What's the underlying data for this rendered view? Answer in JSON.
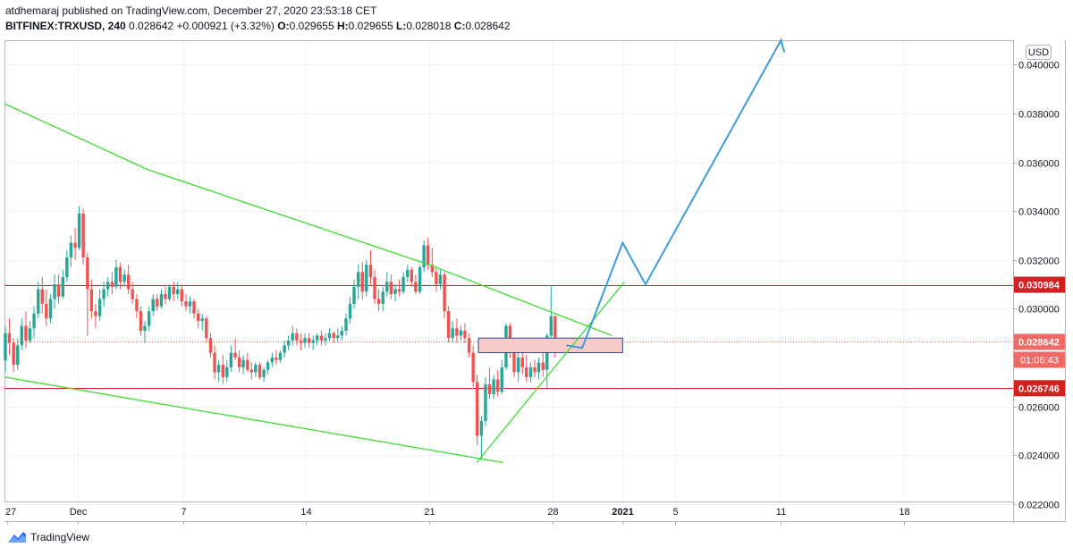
{
  "header": {
    "publisher": "atdhemaraj published on TradingView.com, December 27, 2020 23:53:18 CET",
    "symbol": "BITFINEX:TRXUSD, 240",
    "last": "0.028642",
    "change": "+0.000921 (+3.32%)",
    "o_label": "O:",
    "o_value": "0.029655",
    "h_label": "H:",
    "h_value": "0.029655",
    "l_label": "L:",
    "l_value": "0.028018",
    "c_label": "C:",
    "c_value": "0.028642"
  },
  "footer": {
    "brand": "TradingView"
  },
  "colors": {
    "up": "#26a69a",
    "down": "#ef5350",
    "trend": "#3bdc2c",
    "projection": "#3c9be0",
    "level": "#d32020",
    "zone_fill": "#f6c9cb",
    "zone_stroke": "#2a4a8c"
  },
  "chart_data": {
    "type": "candlestick",
    "currency_button": "USD",
    "ylim": [
      0.0213,
      0.041
    ],
    "y_ticks": [
      {
        "value": 0.04,
        "label": "0.040000"
      },
      {
        "value": 0.038,
        "label": "0.038000"
      },
      {
        "value": 0.036,
        "label": "0.036000"
      },
      {
        "value": 0.034,
        "label": "0.034000"
      },
      {
        "value": 0.032,
        "label": "0.032000"
      },
      {
        "value": 0.03,
        "label": "0.030000"
      },
      {
        "value": 0.026,
        "label": "0.026000"
      },
      {
        "value": 0.024,
        "label": "0.024000"
      },
      {
        "value": 0.022,
        "label": "0.022000"
      }
    ],
    "x_ticks": [
      {
        "day": 27,
        "label": "27"
      },
      {
        "day": 31,
        "label": "Dec"
      },
      {
        "day": 37,
        "label": "7"
      },
      {
        "day": 44,
        "label": "14"
      },
      {
        "day": 51,
        "label": "21"
      },
      {
        "day": 58,
        "label": "28"
      },
      {
        "day": 62,
        "label": "2021"
      },
      {
        "day": 65,
        "label": "5"
      },
      {
        "day": 71,
        "label": "11"
      },
      {
        "day": 78,
        "label": "18"
      }
    ],
    "xlim": [
      26.85,
      84.2
    ],
    "price_labels": [
      {
        "value": 0.030984,
        "label": "0.030984",
        "style": "level"
      },
      {
        "value": 0.028642,
        "label": "0.028642",
        "style": "current"
      },
      {
        "value": 0.026746,
        "label": "0.026746",
        "style": "level"
      }
    ],
    "countdown": "01:06:43",
    "horizontal_levels": [
      0.030984,
      0.026746
    ],
    "current_price": 0.028642,
    "trendlines": [
      {
        "name": "upper-channel",
        "points": [
          [
            26.85,
            0.0384
          ],
          [
            35.0,
            0.0357
          ],
          [
            51.0,
            0.0318
          ],
          [
            61.4,
            0.0289
          ]
        ]
      },
      {
        "name": "lower-channel",
        "points": [
          [
            26.85,
            0.0272
          ],
          [
            55.2,
            0.0237
          ]
        ]
      },
      {
        "name": "rising-support",
        "points": [
          [
            53.7,
            0.0237
          ],
          [
            62.1,
            0.0311
          ]
        ]
      }
    ],
    "projection": [
      [
        58.8,
        0.0285
      ],
      [
        59.7,
        0.0284
      ],
      [
        62.0,
        0.0327
      ],
      [
        63.3,
        0.031
      ],
      [
        71.0,
        0.041
      ],
      [
        71.2,
        0.0405
      ]
    ],
    "zone": {
      "x1": 53.8,
      "x2": 62.0,
      "y_top": 0.0288,
      "y_bottom": 0.0282
    },
    "candles": [
      {
        "t": 26.9,
        "o": 0.02788,
        "h": 0.0293,
        "l": 0.0274,
        "c": 0.029
      },
      {
        "t": 27.13,
        "o": 0.029,
        "h": 0.0296,
        "l": 0.0281,
        "c": 0.0286
      },
      {
        "t": 27.37,
        "o": 0.0286,
        "h": 0.0288,
        "l": 0.0274,
        "c": 0.0277
      },
      {
        "t": 27.6,
        "o": 0.0277,
        "h": 0.0288,
        "l": 0.0275,
        "c": 0.0285
      },
      {
        "t": 27.83,
        "o": 0.0285,
        "h": 0.0296,
        "l": 0.0283,
        "c": 0.0293
      },
      {
        "t": 28.07,
        "o": 0.0293,
        "h": 0.0299,
        "l": 0.0284,
        "c": 0.0287
      },
      {
        "t": 28.3,
        "o": 0.0287,
        "h": 0.0295,
        "l": 0.0286,
        "c": 0.0292
      },
      {
        "t": 28.53,
        "o": 0.0292,
        "h": 0.0301,
        "l": 0.0288,
        "c": 0.0298
      },
      {
        "t": 28.77,
        "o": 0.0298,
        "h": 0.0311,
        "l": 0.0296,
        "c": 0.0308
      },
      {
        "t": 29.0,
        "o": 0.0308,
        "h": 0.0313,
        "l": 0.0298,
        "c": 0.0302
      },
      {
        "t": 29.23,
        "o": 0.0302,
        "h": 0.0308,
        "l": 0.0293,
        "c": 0.0296
      },
      {
        "t": 29.47,
        "o": 0.0296,
        "h": 0.0306,
        "l": 0.0294,
        "c": 0.0304
      },
      {
        "t": 29.7,
        "o": 0.0304,
        "h": 0.0314,
        "l": 0.03,
        "c": 0.031
      },
      {
        "t": 29.93,
        "o": 0.031,
        "h": 0.0314,
        "l": 0.0302,
        "c": 0.0305
      },
      {
        "t": 30.17,
        "o": 0.0305,
        "h": 0.0316,
        "l": 0.0304,
        "c": 0.0313
      },
      {
        "t": 30.4,
        "o": 0.0313,
        "h": 0.0324,
        "l": 0.0311,
        "c": 0.0321
      },
      {
        "t": 30.63,
        "o": 0.0321,
        "h": 0.033,
        "l": 0.0317,
        "c": 0.0327
      },
      {
        "t": 30.87,
        "o": 0.0327,
        "h": 0.0333,
        "l": 0.032,
        "c": 0.0325
      },
      {
        "t": 31.1,
        "o": 0.0325,
        "h": 0.0342,
        "l": 0.0324,
        "c": 0.0339
      },
      {
        "t": 31.33,
        "o": 0.0339,
        "h": 0.0341,
        "l": 0.0318,
        "c": 0.0321
      },
      {
        "t": 31.57,
        "o": 0.0321,
        "h": 0.0323,
        "l": 0.0289,
        "c": 0.0308
      },
      {
        "t": 31.8,
        "o": 0.0308,
        "h": 0.0312,
        "l": 0.0296,
        "c": 0.0299
      },
      {
        "t": 32.03,
        "o": 0.0299,
        "h": 0.0302,
        "l": 0.0292,
        "c": 0.0297
      },
      {
        "t": 32.27,
        "o": 0.0297,
        "h": 0.0308,
        "l": 0.0295,
        "c": 0.0304
      },
      {
        "t": 32.5,
        "o": 0.0304,
        "h": 0.0311,
        "l": 0.0301,
        "c": 0.0308
      },
      {
        "t": 32.73,
        "o": 0.0308,
        "h": 0.0313,
        "l": 0.0305,
        "c": 0.0311
      },
      {
        "t": 32.97,
        "o": 0.0311,
        "h": 0.0315,
        "l": 0.0306,
        "c": 0.0309
      },
      {
        "t": 33.2,
        "o": 0.0309,
        "h": 0.032,
        "l": 0.0308,
        "c": 0.0317
      },
      {
        "t": 33.43,
        "o": 0.0317,
        "h": 0.0319,
        "l": 0.0308,
        "c": 0.0311
      },
      {
        "t": 33.67,
        "o": 0.0311,
        "h": 0.0316,
        "l": 0.0309,
        "c": 0.0314
      },
      {
        "t": 33.9,
        "o": 0.0314,
        "h": 0.0318,
        "l": 0.0306,
        "c": 0.0308
      },
      {
        "t": 34.13,
        "o": 0.0308,
        "h": 0.0311,
        "l": 0.0302,
        "c": 0.0304
      },
      {
        "t": 34.37,
        "o": 0.0304,
        "h": 0.0306,
        "l": 0.0296,
        "c": 0.0299
      },
      {
        "t": 34.6,
        "o": 0.0299,
        "h": 0.0301,
        "l": 0.0289,
        "c": 0.0291
      },
      {
        "t": 34.83,
        "o": 0.0291,
        "h": 0.0295,
        "l": 0.0286,
        "c": 0.0293
      },
      {
        "t": 35.07,
        "o": 0.0293,
        "h": 0.0301,
        "l": 0.0291,
        "c": 0.0299
      },
      {
        "t": 35.3,
        "o": 0.0299,
        "h": 0.0306,
        "l": 0.0297,
        "c": 0.0304
      },
      {
        "t": 35.53,
        "o": 0.0304,
        "h": 0.0306,
        "l": 0.0299,
        "c": 0.0301
      },
      {
        "t": 35.77,
        "o": 0.0301,
        "h": 0.0308,
        "l": 0.03,
        "c": 0.0306
      },
      {
        "t": 36.0,
        "o": 0.0306,
        "h": 0.0309,
        "l": 0.0302,
        "c": 0.0304
      },
      {
        "t": 36.23,
        "o": 0.0304,
        "h": 0.031,
        "l": 0.0303,
        "c": 0.0309
      },
      {
        "t": 36.47,
        "o": 0.0309,
        "h": 0.0311,
        "l": 0.0303,
        "c": 0.0306
      },
      {
        "t": 36.7,
        "o": 0.0306,
        "h": 0.0311,
        "l": 0.0304,
        "c": 0.0308
      },
      {
        "t": 36.93,
        "o": 0.0308,
        "h": 0.031,
        "l": 0.0301,
        "c": 0.0303
      },
      {
        "t": 37.17,
        "o": 0.0303,
        "h": 0.0306,
        "l": 0.0299,
        "c": 0.0301
      },
      {
        "t": 37.4,
        "o": 0.0301,
        "h": 0.0305,
        "l": 0.0298,
        "c": 0.0303
      },
      {
        "t": 37.63,
        "o": 0.0303,
        "h": 0.0304,
        "l": 0.0296,
        "c": 0.0298
      },
      {
        "t": 37.87,
        "o": 0.0298,
        "h": 0.03,
        "l": 0.0292,
        "c": 0.0295
      },
      {
        "t": 38.1,
        "o": 0.0295,
        "h": 0.0298,
        "l": 0.0291,
        "c": 0.0296
      },
      {
        "t": 38.33,
        "o": 0.0296,
        "h": 0.0297,
        "l": 0.0286,
        "c": 0.0288
      },
      {
        "t": 38.57,
        "o": 0.0288,
        "h": 0.029,
        "l": 0.028,
        "c": 0.0282
      },
      {
        "t": 38.8,
        "o": 0.0282,
        "h": 0.0285,
        "l": 0.0271,
        "c": 0.0274
      },
      {
        "t": 39.03,
        "o": 0.0274,
        "h": 0.0279,
        "l": 0.027,
        "c": 0.0277
      },
      {
        "t": 39.27,
        "o": 0.0277,
        "h": 0.0281,
        "l": 0.0269,
        "c": 0.0272
      },
      {
        "t": 39.5,
        "o": 0.0272,
        "h": 0.0279,
        "l": 0.027,
        "c": 0.0276
      },
      {
        "t": 39.73,
        "o": 0.0276,
        "h": 0.0285,
        "l": 0.0274,
        "c": 0.0282
      },
      {
        "t": 39.97,
        "o": 0.0282,
        "h": 0.0288,
        "l": 0.0279,
        "c": 0.028
      },
      {
        "t": 40.2,
        "o": 0.028,
        "h": 0.0283,
        "l": 0.0274,
        "c": 0.0276
      },
      {
        "t": 40.43,
        "o": 0.0276,
        "h": 0.0281,
        "l": 0.0273,
        "c": 0.0279
      },
      {
        "t": 40.67,
        "o": 0.0279,
        "h": 0.0282,
        "l": 0.0274,
        "c": 0.0275
      },
      {
        "t": 40.9,
        "o": 0.0275,
        "h": 0.0278,
        "l": 0.0271,
        "c": 0.0274
      },
      {
        "t": 41.13,
        "o": 0.0274,
        "h": 0.0278,
        "l": 0.0272,
        "c": 0.0277
      },
      {
        "t": 41.37,
        "o": 0.0277,
        "h": 0.0278,
        "l": 0.0271,
        "c": 0.0272
      },
      {
        "t": 41.6,
        "o": 0.0272,
        "h": 0.0276,
        "l": 0.027,
        "c": 0.0275
      },
      {
        "t": 41.83,
        "o": 0.0275,
        "h": 0.0279,
        "l": 0.0273,
        "c": 0.0278
      },
      {
        "t": 42.07,
        "o": 0.0278,
        "h": 0.0282,
        "l": 0.0276,
        "c": 0.028
      },
      {
        "t": 42.3,
        "o": 0.028,
        "h": 0.0283,
        "l": 0.0277,
        "c": 0.0279
      },
      {
        "t": 42.53,
        "o": 0.0279,
        "h": 0.0283,
        "l": 0.0278,
        "c": 0.0282
      },
      {
        "t": 42.77,
        "o": 0.0282,
        "h": 0.0287,
        "l": 0.028,
        "c": 0.0285
      },
      {
        "t": 43.0,
        "o": 0.0285,
        "h": 0.0289,
        "l": 0.0283,
        "c": 0.0287
      },
      {
        "t": 43.23,
        "o": 0.0287,
        "h": 0.0293,
        "l": 0.0285,
        "c": 0.029
      },
      {
        "t": 43.47,
        "o": 0.029,
        "h": 0.0292,
        "l": 0.0285,
        "c": 0.0287
      },
      {
        "t": 43.7,
        "o": 0.0287,
        "h": 0.029,
        "l": 0.0283,
        "c": 0.0286
      },
      {
        "t": 43.93,
        "o": 0.0286,
        "h": 0.029,
        "l": 0.0284,
        "c": 0.0288
      },
      {
        "t": 44.17,
        "o": 0.0288,
        "h": 0.029,
        "l": 0.0284,
        "c": 0.0286
      },
      {
        "t": 44.4,
        "o": 0.0286,
        "h": 0.0289,
        "l": 0.0283,
        "c": 0.0287
      },
      {
        "t": 44.63,
        "o": 0.0287,
        "h": 0.029,
        "l": 0.0285,
        "c": 0.0289
      },
      {
        "t": 44.87,
        "o": 0.0289,
        "h": 0.0291,
        "l": 0.0285,
        "c": 0.0287
      },
      {
        "t": 45.1,
        "o": 0.0287,
        "h": 0.029,
        "l": 0.0285,
        "c": 0.0288
      },
      {
        "t": 45.33,
        "o": 0.0288,
        "h": 0.0292,
        "l": 0.0287,
        "c": 0.029
      },
      {
        "t": 45.57,
        "o": 0.029,
        "h": 0.0291,
        "l": 0.0286,
        "c": 0.0288
      },
      {
        "t": 45.8,
        "o": 0.0288,
        "h": 0.0292,
        "l": 0.0286,
        "c": 0.0289
      },
      {
        "t": 46.03,
        "o": 0.0289,
        "h": 0.0293,
        "l": 0.0287,
        "c": 0.0291
      },
      {
        "t": 46.27,
        "o": 0.0291,
        "h": 0.0298,
        "l": 0.0289,
        "c": 0.0296
      },
      {
        "t": 46.5,
        "o": 0.0296,
        "h": 0.0305,
        "l": 0.0294,
        "c": 0.0302
      },
      {
        "t": 46.73,
        "o": 0.0302,
        "h": 0.0312,
        "l": 0.03,
        "c": 0.0309
      },
      {
        "t": 46.97,
        "o": 0.0309,
        "h": 0.0318,
        "l": 0.0304,
        "c": 0.0315
      },
      {
        "t": 47.2,
        "o": 0.0315,
        "h": 0.0319,
        "l": 0.0304,
        "c": 0.0307
      },
      {
        "t": 47.43,
        "o": 0.0307,
        "h": 0.032,
        "l": 0.0305,
        "c": 0.0318
      },
      {
        "t": 47.67,
        "o": 0.0318,
        "h": 0.0324,
        "l": 0.031,
        "c": 0.0313
      },
      {
        "t": 47.9,
        "o": 0.0313,
        "h": 0.0316,
        "l": 0.0302,
        "c": 0.0304
      },
      {
        "t": 48.13,
        "o": 0.0304,
        "h": 0.0308,
        "l": 0.0299,
        "c": 0.0302
      },
      {
        "t": 48.37,
        "o": 0.0302,
        "h": 0.0309,
        "l": 0.0299,
        "c": 0.0307
      },
      {
        "t": 48.6,
        "o": 0.0307,
        "h": 0.0315,
        "l": 0.0305,
        "c": 0.0311
      },
      {
        "t": 48.83,
        "o": 0.0311,
        "h": 0.0314,
        "l": 0.0304,
        "c": 0.0306
      },
      {
        "t": 49.07,
        "o": 0.0306,
        "h": 0.031,
        "l": 0.0303,
        "c": 0.0308
      },
      {
        "t": 49.3,
        "o": 0.0308,
        "h": 0.0312,
        "l": 0.0305,
        "c": 0.0307
      },
      {
        "t": 49.53,
        "o": 0.0307,
        "h": 0.0315,
        "l": 0.0306,
        "c": 0.0313
      },
      {
        "t": 49.77,
        "o": 0.0313,
        "h": 0.0318,
        "l": 0.0311,
        "c": 0.0316
      },
      {
        "t": 50.0,
        "o": 0.0316,
        "h": 0.0317,
        "l": 0.0309,
        "c": 0.0311
      },
      {
        "t": 50.23,
        "o": 0.0311,
        "h": 0.0314,
        "l": 0.0306,
        "c": 0.0307
      },
      {
        "t": 50.47,
        "o": 0.0307,
        "h": 0.0318,
        "l": 0.0306,
        "c": 0.0317
      },
      {
        "t": 50.7,
        "o": 0.0317,
        "h": 0.0328,
        "l": 0.0315,
        "c": 0.0326
      },
      {
        "t": 50.93,
        "o": 0.0326,
        "h": 0.0329,
        "l": 0.0316,
        "c": 0.0318
      },
      {
        "t": 51.17,
        "o": 0.0318,
        "h": 0.0325,
        "l": 0.0313,
        "c": 0.0315
      },
      {
        "t": 51.4,
        "o": 0.0315,
        "h": 0.0317,
        "l": 0.0307,
        "c": 0.031
      },
      {
        "t": 51.63,
        "o": 0.031,
        "h": 0.0316,
        "l": 0.0308,
        "c": 0.0314
      },
      {
        "t": 51.87,
        "o": 0.0314,
        "h": 0.0315,
        "l": 0.0296,
        "c": 0.0299
      },
      {
        "t": 52.1,
        "o": 0.0299,
        "h": 0.0301,
        "l": 0.0286,
        "c": 0.0288
      },
      {
        "t": 52.33,
        "o": 0.0288,
        "h": 0.0295,
        "l": 0.0286,
        "c": 0.0292
      },
      {
        "t": 52.57,
        "o": 0.0292,
        "h": 0.0296,
        "l": 0.0286,
        "c": 0.0289
      },
      {
        "t": 52.8,
        "o": 0.0289,
        "h": 0.0293,
        "l": 0.0287,
        "c": 0.0291
      },
      {
        "t": 53.03,
        "o": 0.0291,
        "h": 0.0294,
        "l": 0.0286,
        "c": 0.0288
      },
      {
        "t": 53.27,
        "o": 0.0288,
        "h": 0.029,
        "l": 0.028,
        "c": 0.0282
      },
      {
        "t": 53.5,
        "o": 0.0282,
        "h": 0.0285,
        "l": 0.0268,
        "c": 0.027
      },
      {
        "t": 53.73,
        "o": 0.027,
        "h": 0.0273,
        "l": 0.0244,
        "c": 0.0248
      },
      {
        "t": 53.97,
        "o": 0.0248,
        "h": 0.0256,
        "l": 0.0238,
        "c": 0.0254
      },
      {
        "t": 54.2,
        "o": 0.0254,
        "h": 0.0272,
        "l": 0.0252,
        "c": 0.0269
      },
      {
        "t": 54.43,
        "o": 0.0269,
        "h": 0.0276,
        "l": 0.0263,
        "c": 0.0265
      },
      {
        "t": 54.67,
        "o": 0.0265,
        "h": 0.0273,
        "l": 0.0263,
        "c": 0.0271
      },
      {
        "t": 54.9,
        "o": 0.0271,
        "h": 0.0275,
        "l": 0.0264,
        "c": 0.0266
      },
      {
        "t": 55.13,
        "o": 0.0266,
        "h": 0.0279,
        "l": 0.0265,
        "c": 0.0276
      },
      {
        "t": 55.37,
        "o": 0.0276,
        "h": 0.0294,
        "l": 0.0275,
        "c": 0.0293
      },
      {
        "t": 55.6,
        "o": 0.0293,
        "h": 0.0294,
        "l": 0.028,
        "c": 0.0283
      },
      {
        "t": 55.83,
        "o": 0.0283,
        "h": 0.0286,
        "l": 0.0272,
        "c": 0.0274
      },
      {
        "t": 56.07,
        "o": 0.0274,
        "h": 0.0283,
        "l": 0.027,
        "c": 0.028
      },
      {
        "t": 56.3,
        "o": 0.028,
        "h": 0.0283,
        "l": 0.0273,
        "c": 0.0276
      },
      {
        "t": 56.53,
        "o": 0.0276,
        "h": 0.0281,
        "l": 0.027,
        "c": 0.0272
      },
      {
        "t": 56.77,
        "o": 0.0272,
        "h": 0.0278,
        "l": 0.027,
        "c": 0.0276
      },
      {
        "t": 57.0,
        "o": 0.0276,
        "h": 0.0279,
        "l": 0.0272,
        "c": 0.0274
      },
      {
        "t": 57.23,
        "o": 0.0274,
        "h": 0.028,
        "l": 0.0271,
        "c": 0.0278
      },
      {
        "t": 57.47,
        "o": 0.0278,
        "h": 0.0282,
        "l": 0.0272,
        "c": 0.0275
      },
      {
        "t": 57.7,
        "o": 0.0275,
        "h": 0.029,
        "l": 0.0267,
        "c": 0.0289
      },
      {
        "t": 57.93,
        "o": 0.0289,
        "h": 0.0309,
        "l": 0.0286,
        "c": 0.0297
      },
      {
        "t": 58.16,
        "o": 0.0297,
        "h": 0.0297,
        "l": 0.028,
        "c": 0.02864
      }
    ]
  }
}
